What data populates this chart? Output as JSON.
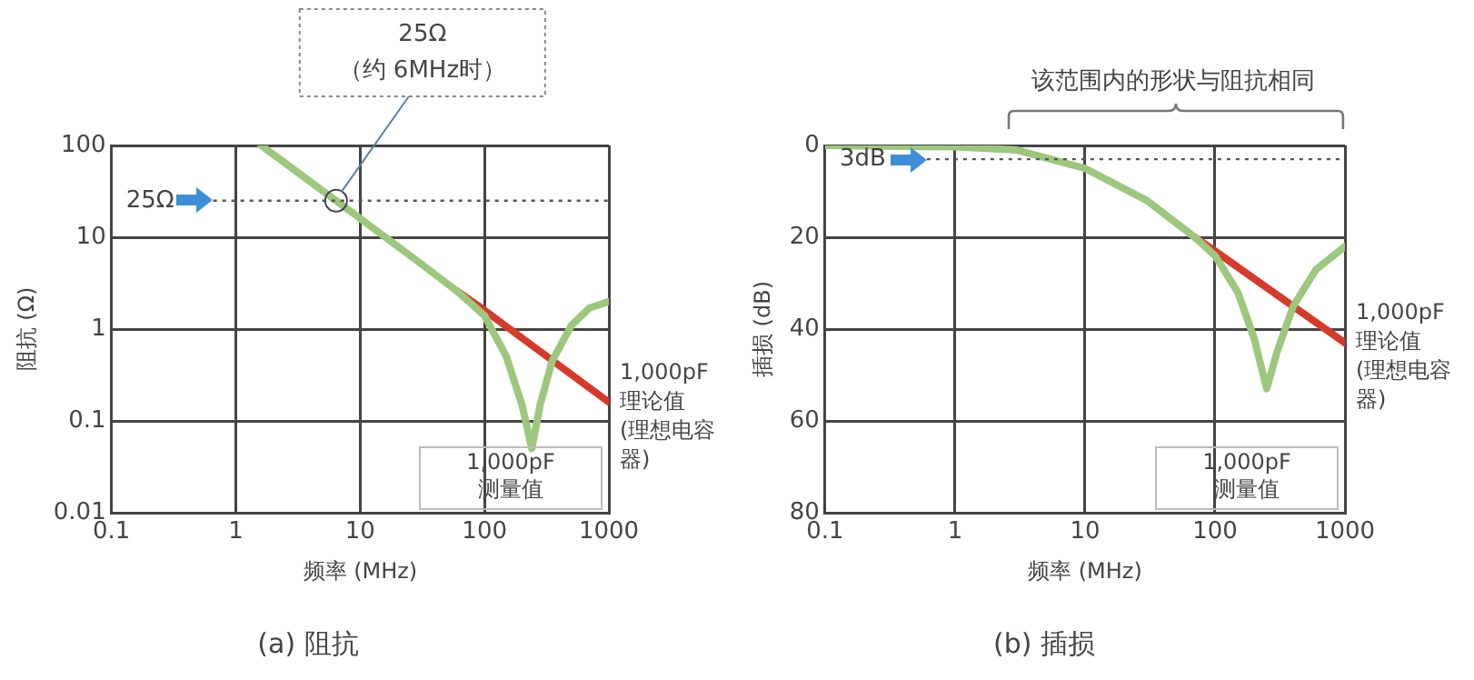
{
  "chart_data": [
    {
      "type": "line",
      "title": "(a) 阻抗",
      "xlabel": "频率 (MHz)",
      "ylabel": "阻抗 (Ω)",
      "log": "xy",
      "xlim": [
        0.1,
        1000
      ],
      "xticks": [
        0.1,
        1,
        10,
        100,
        1000
      ],
      "ylim": [
        0.01,
        100
      ],
      "yticks": [
        0.01,
        0.1,
        1,
        10,
        100
      ],
      "grid": true,
      "legend": false,
      "marker": "none",
      "series": [
        {
          "name": "1,000pF\n测量值",
          "color": "#9dc77c",
          "x": [
            1.6,
            6.4,
            10,
            30,
            60,
            100,
            150,
            200,
            240,
            280,
            350,
            500,
            700,
            1000
          ],
          "values": [
            100,
            25,
            16,
            5.3,
            2.6,
            1.4,
            0.5,
            0.15,
            0.05,
            0.15,
            0.45,
            1.1,
            1.7,
            2
          ]
        },
        {
          "name": "1,000pF\n理论值\n(理想电容器)",
          "color": "#d63a2a",
          "x": [
            60,
            100,
            1000
          ],
          "values": [
            2.6,
            1.6,
            0.16
          ]
        }
      ],
      "ref_lines": [
        {
          "axis": "y",
          "value": 25,
          "label": "25Ω",
          "line_style": "dotted"
        }
      ],
      "annotations": [
        {
          "text": "25Ω\n（约 6MHz时）",
          "x": 6.4,
          "y": 25
        }
      ]
    },
    {
      "type": "line",
      "title": "(b) 插损",
      "xlabel": "频率 (MHz)",
      "ylabel": "插损 (dB)",
      "log": "x",
      "xlim": [
        0.1,
        1000
      ],
      "xticks": [
        0.1,
        1,
        10,
        100,
        1000
      ],
      "ylim": [
        80,
        0
      ],
      "yticks": [
        0,
        20,
        40,
        60,
        80
      ],
      "grid": true,
      "legend": false,
      "marker": "none",
      "series": [
        {
          "name": "1,000pF\n测量值",
          "color": "#9dc77c",
          "x": [
            0.1,
            1,
            3,
            10,
            30,
            70,
            100,
            150,
            200,
            250,
            300,
            400,
            600,
            1000
          ],
          "values": [
            0,
            0.3,
            1,
            5,
            12,
            20,
            24,
            32,
            42,
            53,
            45,
            35,
            27,
            22
          ]
        },
        {
          "name": "1,000pF\n理论值\n(理想电容器)",
          "color": "#d63a2a",
          "x": [
            70,
            100,
            1000
          ],
          "values": [
            20,
            23,
            43
          ]
        }
      ],
      "ref_lines": [
        {
          "axis": "y",
          "value": 3,
          "label": "3dB",
          "line_style": "dotted"
        }
      ],
      "annotations": [
        "该范围内的形状与阻抗相同"
      ]
    }
  ]
}
